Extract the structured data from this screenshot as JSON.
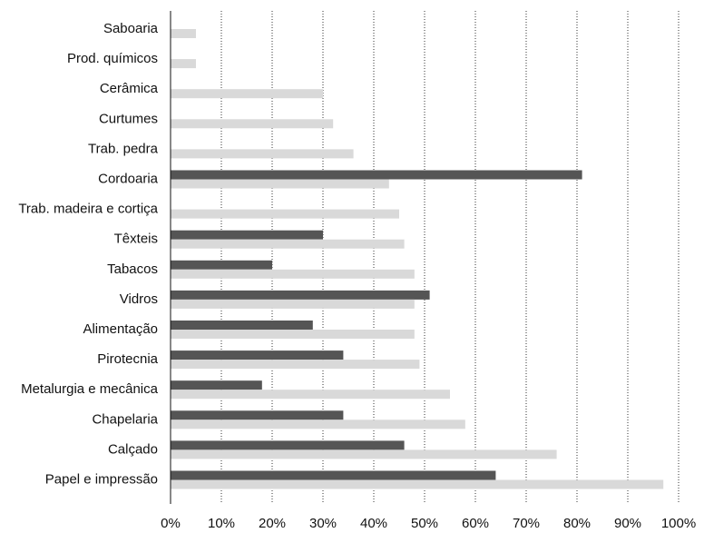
{
  "chart_data": {
    "type": "bar",
    "orientation": "horizontal",
    "categories": [
      "Saboaria",
      "Prod. químicos",
      "Cerâmica",
      "Curtumes",
      "Trab. pedra",
      "Cordoaria",
      "Trab. madeira e cortiça",
      "Têxteis",
      "Tabacos",
      "Vidros",
      "Alimentação",
      "Pirotecnia",
      "Metalurgia e mecânica",
      "Chapelaria",
      "Calçado",
      "Papel e impressão"
    ],
    "series": [
      {
        "color": "#555555",
        "values": [
          null,
          null,
          null,
          null,
          null,
          81,
          null,
          30,
          20,
          51,
          28,
          34,
          18,
          34,
          46,
          64
        ]
      },
      {
        "color": "#d9d9d9",
        "values": [
          5,
          5,
          30,
          32,
          36,
          43,
          45,
          46,
          48,
          48,
          48,
          49,
          55,
          58,
          76,
          97
        ]
      }
    ],
    "xlim": [
      0,
      100
    ],
    "xticks": [
      "0%",
      "10%",
      "20%",
      "30%",
      "40%",
      "50%",
      "60%",
      "70%",
      "80%",
      "90%",
      "100%"
    ],
    "grid": "vertical dotted",
    "title": "",
    "xlabel": "",
    "ylabel": ""
  }
}
